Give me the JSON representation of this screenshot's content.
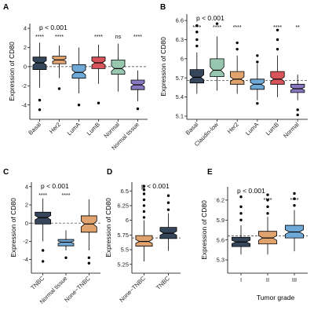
{
  "chart_data": [
    {
      "panel": "A",
      "type": "boxplot",
      "p_text": "p < 0.001",
      "ylabel": "Expression of CD80",
      "ylim": [
        -5.5,
        4.5
      ],
      "yticks": [
        -4,
        -2,
        0,
        2,
        4
      ],
      "ref_line": 0,
      "tick_rotation": -45,
      "categories": [
        "Basal",
        "Her2",
        "LumA",
        "LumB",
        "Normal",
        "Normal tissue"
      ],
      "colors": [
        "#35465a",
        "#e0a36e",
        "#6fa9d8",
        "#d9545a",
        "#97c7ae",
        "#8878c0"
      ],
      "stars": [
        "****",
        "****",
        "",
        "****",
        "ns",
        "****"
      ],
      "boxes": [
        {
          "min": -2.2,
          "q1": -0.3,
          "median": 0.4,
          "q3": 1.0,
          "max": 2.5,
          "outliers": [
            -3.5,
            -4.5
          ]
        },
        {
          "min": -1.2,
          "q1": 0.3,
          "median": 0.7,
          "q3": 1.1,
          "max": 2.2,
          "outliers": [
            -2.3
          ]
        },
        {
          "min": -2.8,
          "q1": -1.2,
          "median": -0.6,
          "q3": 0.2,
          "max": 2.0,
          "outliers": [
            -4.0
          ]
        },
        {
          "min": -1.8,
          "q1": -0.2,
          "median": 0.4,
          "q3": 1.0,
          "max": 2.3,
          "outliers": [
            -3.8
          ]
        },
        {
          "min": -2.6,
          "q1": -0.8,
          "median": -0.2,
          "q3": 0.7,
          "max": 2.4,
          "outliers": []
        },
        {
          "min": -3.6,
          "q1": -2.4,
          "median": -1.9,
          "q3": -1.4,
          "max": -0.4,
          "outliers": [
            -4.4
          ]
        }
      ]
    },
    {
      "panel": "B",
      "type": "boxplot",
      "p_text": "p < 0.001",
      "ylabel": "Expression of CD80",
      "ylim": [
        5.05,
        6.7
      ],
      "yticks": [
        5.1,
        5.4,
        5.7,
        6.0,
        6.3,
        6.6
      ],
      "ref_line": 5.66,
      "tick_rotation": -45,
      "categories": [
        "Basal",
        "Claudin-low",
        "Her2",
        "LumA",
        "LumB",
        "Normal"
      ],
      "colors": [
        "#35465a",
        "#97c7ae",
        "#e0a36e",
        "#6fa9d8",
        "#d9545a",
        "#8878c0"
      ],
      "stars": [
        "****",
        "****",
        "****",
        "",
        "****",
        "**"
      ],
      "boxes": [
        {
          "min": 5.45,
          "q1": 5.62,
          "median": 5.71,
          "q3": 5.83,
          "max": 6.1,
          "outliers": [
            6.2,
            6.3,
            6.42,
            6.52
          ]
        },
        {
          "min": 5.5,
          "q1": 5.72,
          "median": 5.82,
          "q3": 6.0,
          "max": 6.35,
          "outliers": [
            6.55
          ]
        },
        {
          "min": 5.45,
          "q1": 5.6,
          "median": 5.68,
          "q3": 5.8,
          "max": 6.05,
          "outliers": [
            6.15,
            6.25
          ]
        },
        {
          "min": 5.35,
          "q1": 5.52,
          "median": 5.6,
          "q3": 5.68,
          "max": 5.92,
          "outliers": [
            5.3,
            5.95,
            6.05
          ]
        },
        {
          "min": 5.4,
          "q1": 5.6,
          "median": 5.68,
          "q3": 5.8,
          "max": 6.05,
          "outliers": [
            6.15,
            6.3,
            6.45
          ]
        },
        {
          "min": 5.35,
          "q1": 5.47,
          "median": 5.53,
          "q3": 5.6,
          "max": 5.75,
          "outliers": [
            5.2,
            5.12
          ]
        }
      ]
    },
    {
      "panel": "C",
      "type": "boxplot",
      "p_text": "p < 0.001",
      "ylabel": "Expression of CD80",
      "ylim": [
        -5.5,
        4.5
      ],
      "yticks": [
        -4,
        -2,
        0,
        2,
        4
      ],
      "ref_line": 0,
      "tick_rotation": -45,
      "categories": [
        "TNBC",
        "Normal tissue",
        "None−TNBC"
      ],
      "colors": [
        "#35465a",
        "#6fa9d8",
        "#e0a36e"
      ],
      "stars": [
        "****",
        "****",
        ""
      ],
      "boxes": [
        {
          "min": -2.0,
          "q1": -0.1,
          "median": 0.6,
          "q3": 1.2,
          "max": 2.7,
          "outliers": [
            -3.0,
            -4.2
          ]
        },
        {
          "min": -3.0,
          "q1": -2.5,
          "median": -2.1,
          "q3": -1.8,
          "max": -0.8,
          "outliers": [
            -3.8
          ]
        },
        {
          "min": -3.0,
          "q1": -1.0,
          "median": -0.1,
          "q3": 0.8,
          "max": 2.6,
          "outliers": [
            -4.4,
            -3.8
          ]
        }
      ]
    },
    {
      "panel": "D",
      "type": "boxplot",
      "p_text": "p < 0.001",
      "ylabel": "Expression of CD80",
      "ylim": [
        5.1,
        6.65
      ],
      "yticks": [
        5.25,
        5.5,
        5.75,
        6.0,
        6.25,
        6.5
      ],
      "ref_line": 5.7,
      "tick_rotation": -45,
      "categories": [
        "None−TNBC",
        "TNBC"
      ],
      "colors": [
        "#e0a36e",
        "#35465a"
      ],
      "stars": [
        "",
        ""
      ],
      "boxes": [
        {
          "min": 5.3,
          "q1": 5.56,
          "median": 5.64,
          "q3": 5.74,
          "max": 6.0,
          "outliers": [
            6.05,
            6.15,
            6.25,
            6.35,
            6.45,
            6.52,
            6.58
          ]
        },
        {
          "min": 5.48,
          "q1": 5.69,
          "median": 5.78,
          "q3": 5.88,
          "max": 6.12,
          "outliers": [
            6.18,
            6.3,
            6.42
          ]
        }
      ]
    },
    {
      "panel": "E",
      "type": "boxplot",
      "p_text": "p < 0.001",
      "ylabel": "Expression of CD80",
      "xlabel": "Tumor grade",
      "ylim": [
        5.1,
        6.4
      ],
      "yticks": [
        5.3,
        5.6,
        5.9,
        6.2
      ],
      "ref_line": 5.66,
      "tick_rotation": 0,
      "categories": [
        "I",
        "II",
        "III"
      ],
      "colors": [
        "#35465a",
        "#e0a36e",
        "#6fa9d8"
      ],
      "stars": [
        "",
        "****",
        "****"
      ],
      "boxes": [
        {
          "min": 5.38,
          "q1": 5.5,
          "median": 5.57,
          "q3": 5.64,
          "max": 5.82,
          "outliers": [
            5.9,
            6.0,
            6.1,
            6.25
          ]
        },
        {
          "min": 5.38,
          "q1": 5.54,
          "median": 5.63,
          "q3": 5.73,
          "max": 5.95,
          "outliers": [
            6.0,
            6.1,
            6.2,
            6.28
          ]
        },
        {
          "min": 5.43,
          "q1": 5.63,
          "median": 5.72,
          "q3": 5.82,
          "max": 6.05,
          "outliers": [
            6.12,
            6.22,
            6.3
          ]
        }
      ]
    }
  ]
}
